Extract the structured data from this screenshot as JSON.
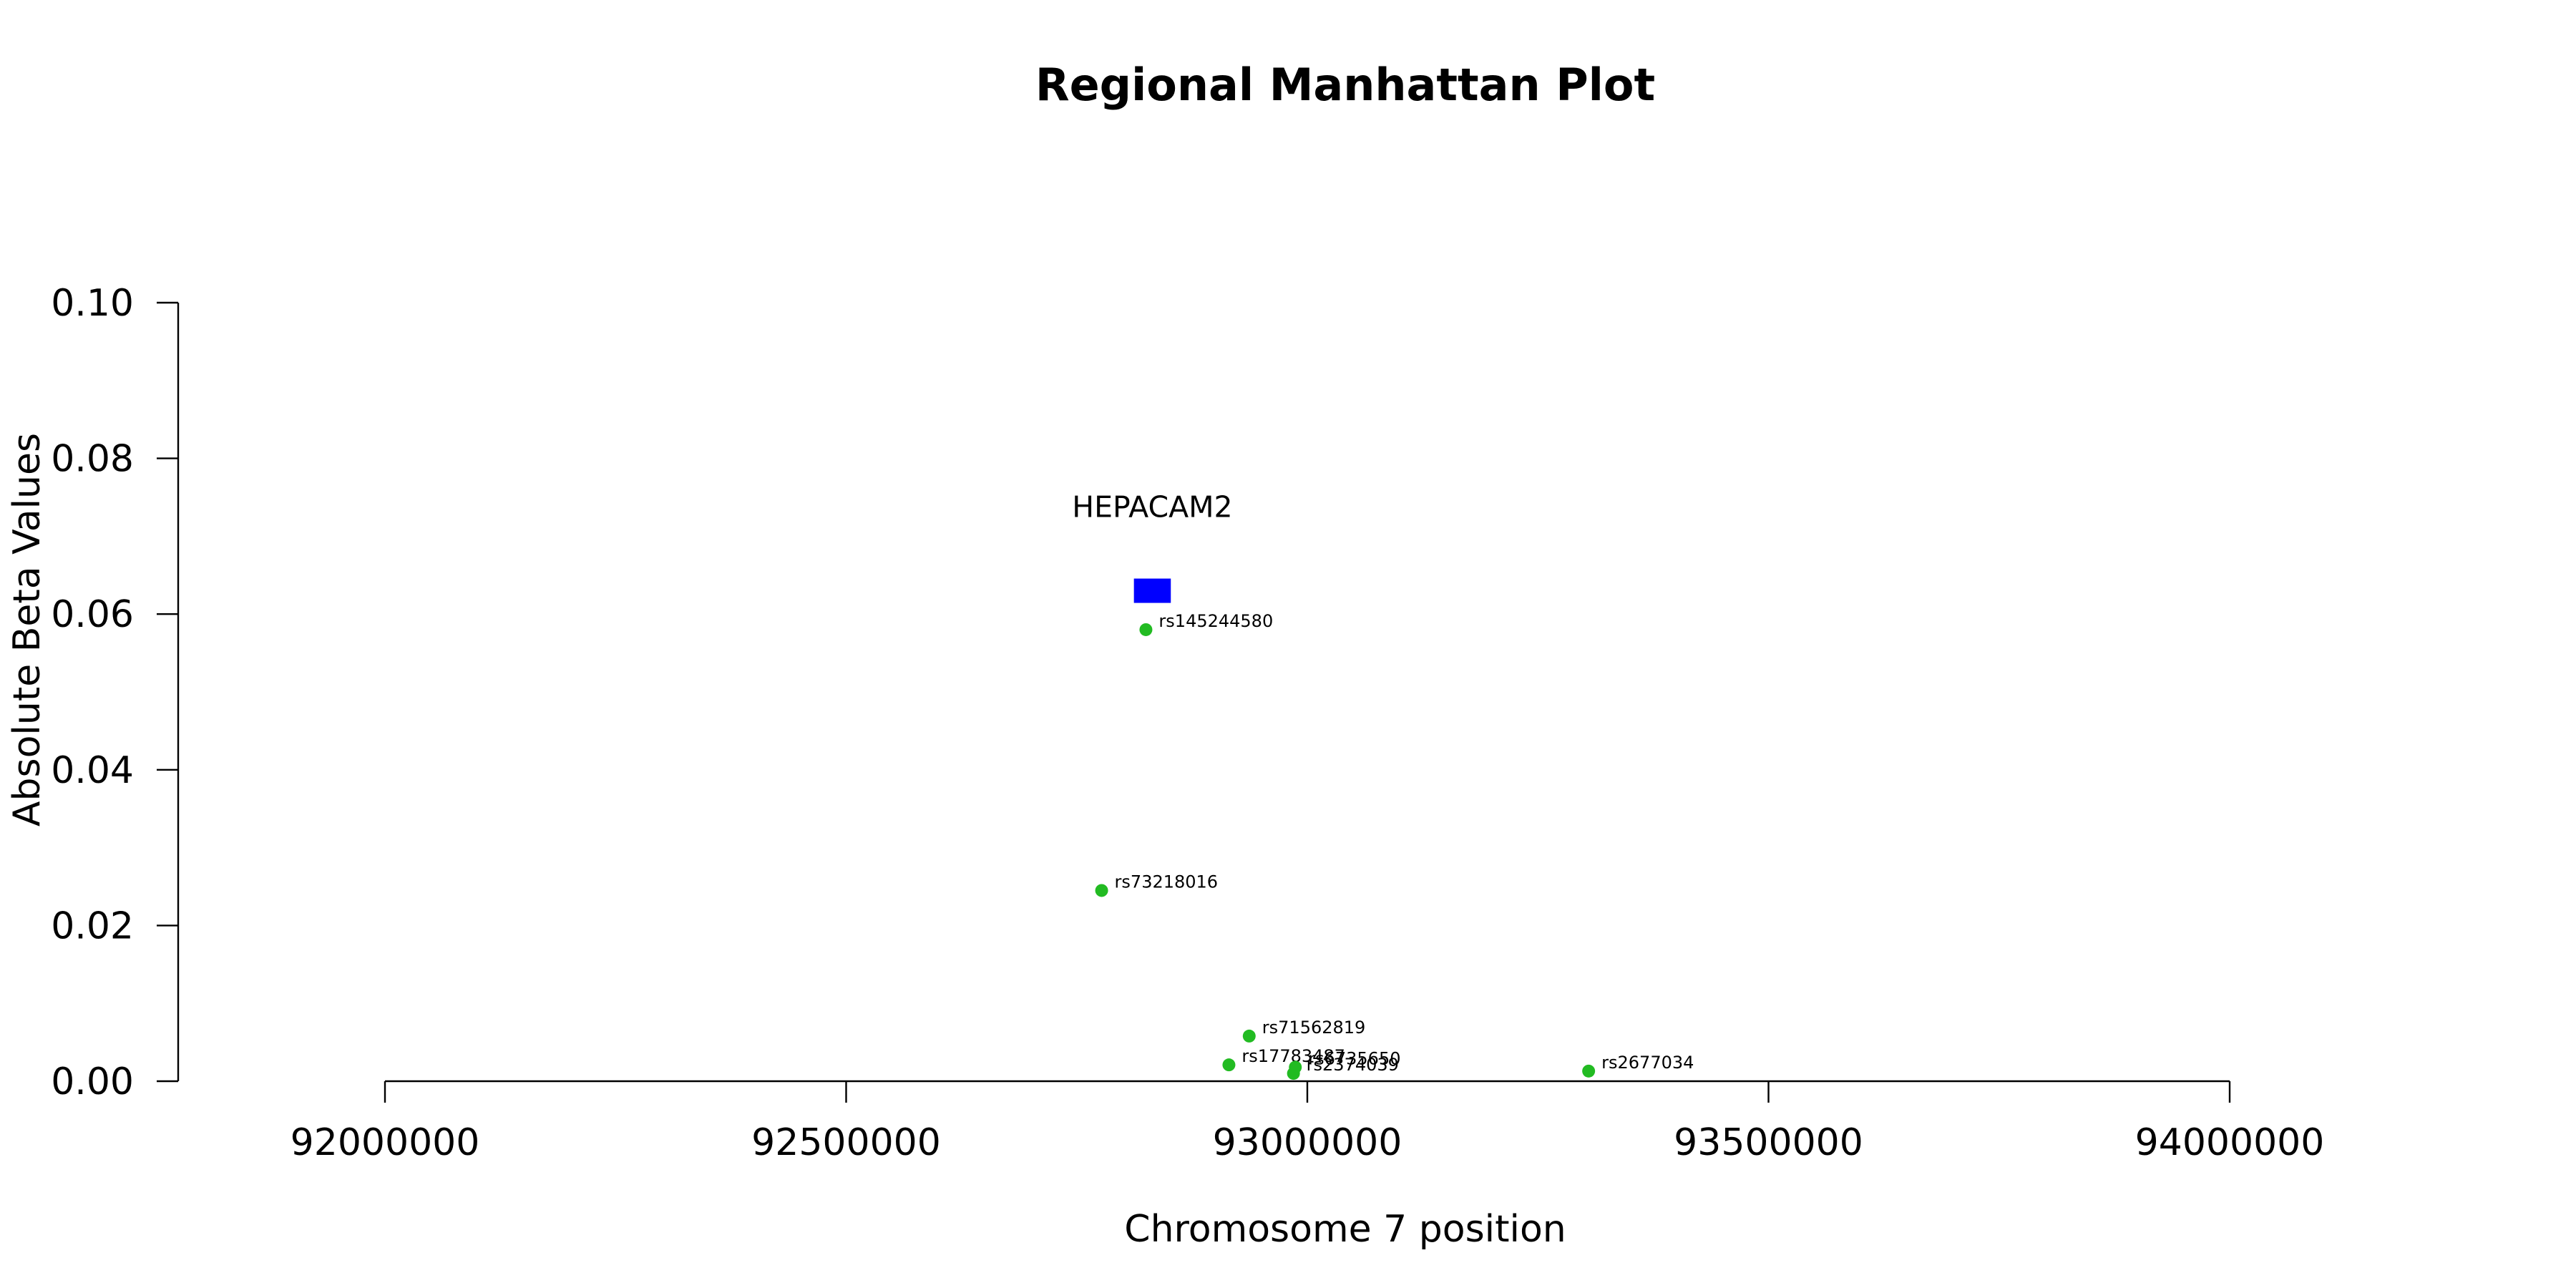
{
  "chart_data": {
    "type": "scatter",
    "title": "Regional Manhattan Plot",
    "xlabel": "Chromosome 7 position",
    "ylabel": "Absolute Beta Values",
    "xlim": [
      92000000,
      94000000
    ],
    "ylim": [
      0,
      0.1
    ],
    "x_ticks": [
      92000000,
      92500000,
      93000000,
      93500000,
      94000000
    ],
    "x_tick_labels": [
      "92000000",
      "92500000",
      "93000000",
      "93500000",
      "94000000"
    ],
    "y_ticks": [
      0,
      0.02,
      0.04,
      0.06,
      0.08,
      0.1
    ],
    "y_tick_labels": [
      "0.00",
      "0.02",
      "0.04",
      "0.06",
      "0.08",
      "0.10"
    ],
    "grid": false,
    "point_color": "#22bb22",
    "gene_color": "#0000ff",
    "points": [
      {
        "label": "rs145244580",
        "x": 92825000,
        "y": 0.058
      },
      {
        "label": "rs73218016",
        "x": 92777000,
        "y": 0.0245
      },
      {
        "label": "rs71562819",
        "x": 92937000,
        "y": 0.0058
      },
      {
        "label": "rs17783487",
        "x": 92915000,
        "y": 0.0021
      },
      {
        "label": "rs6735650",
        "x": 92987000,
        "y": 0.0018
      },
      {
        "label": "rs2374039",
        "x": 92985000,
        "y": 0.001
      },
      {
        "label": "rs2677034",
        "x": 93305000,
        "y": 0.0013
      }
    ],
    "genes": [
      {
        "name": "HEPACAM2",
        "start": 92812000,
        "end": 92852000,
        "y": 0.063
      }
    ]
  }
}
